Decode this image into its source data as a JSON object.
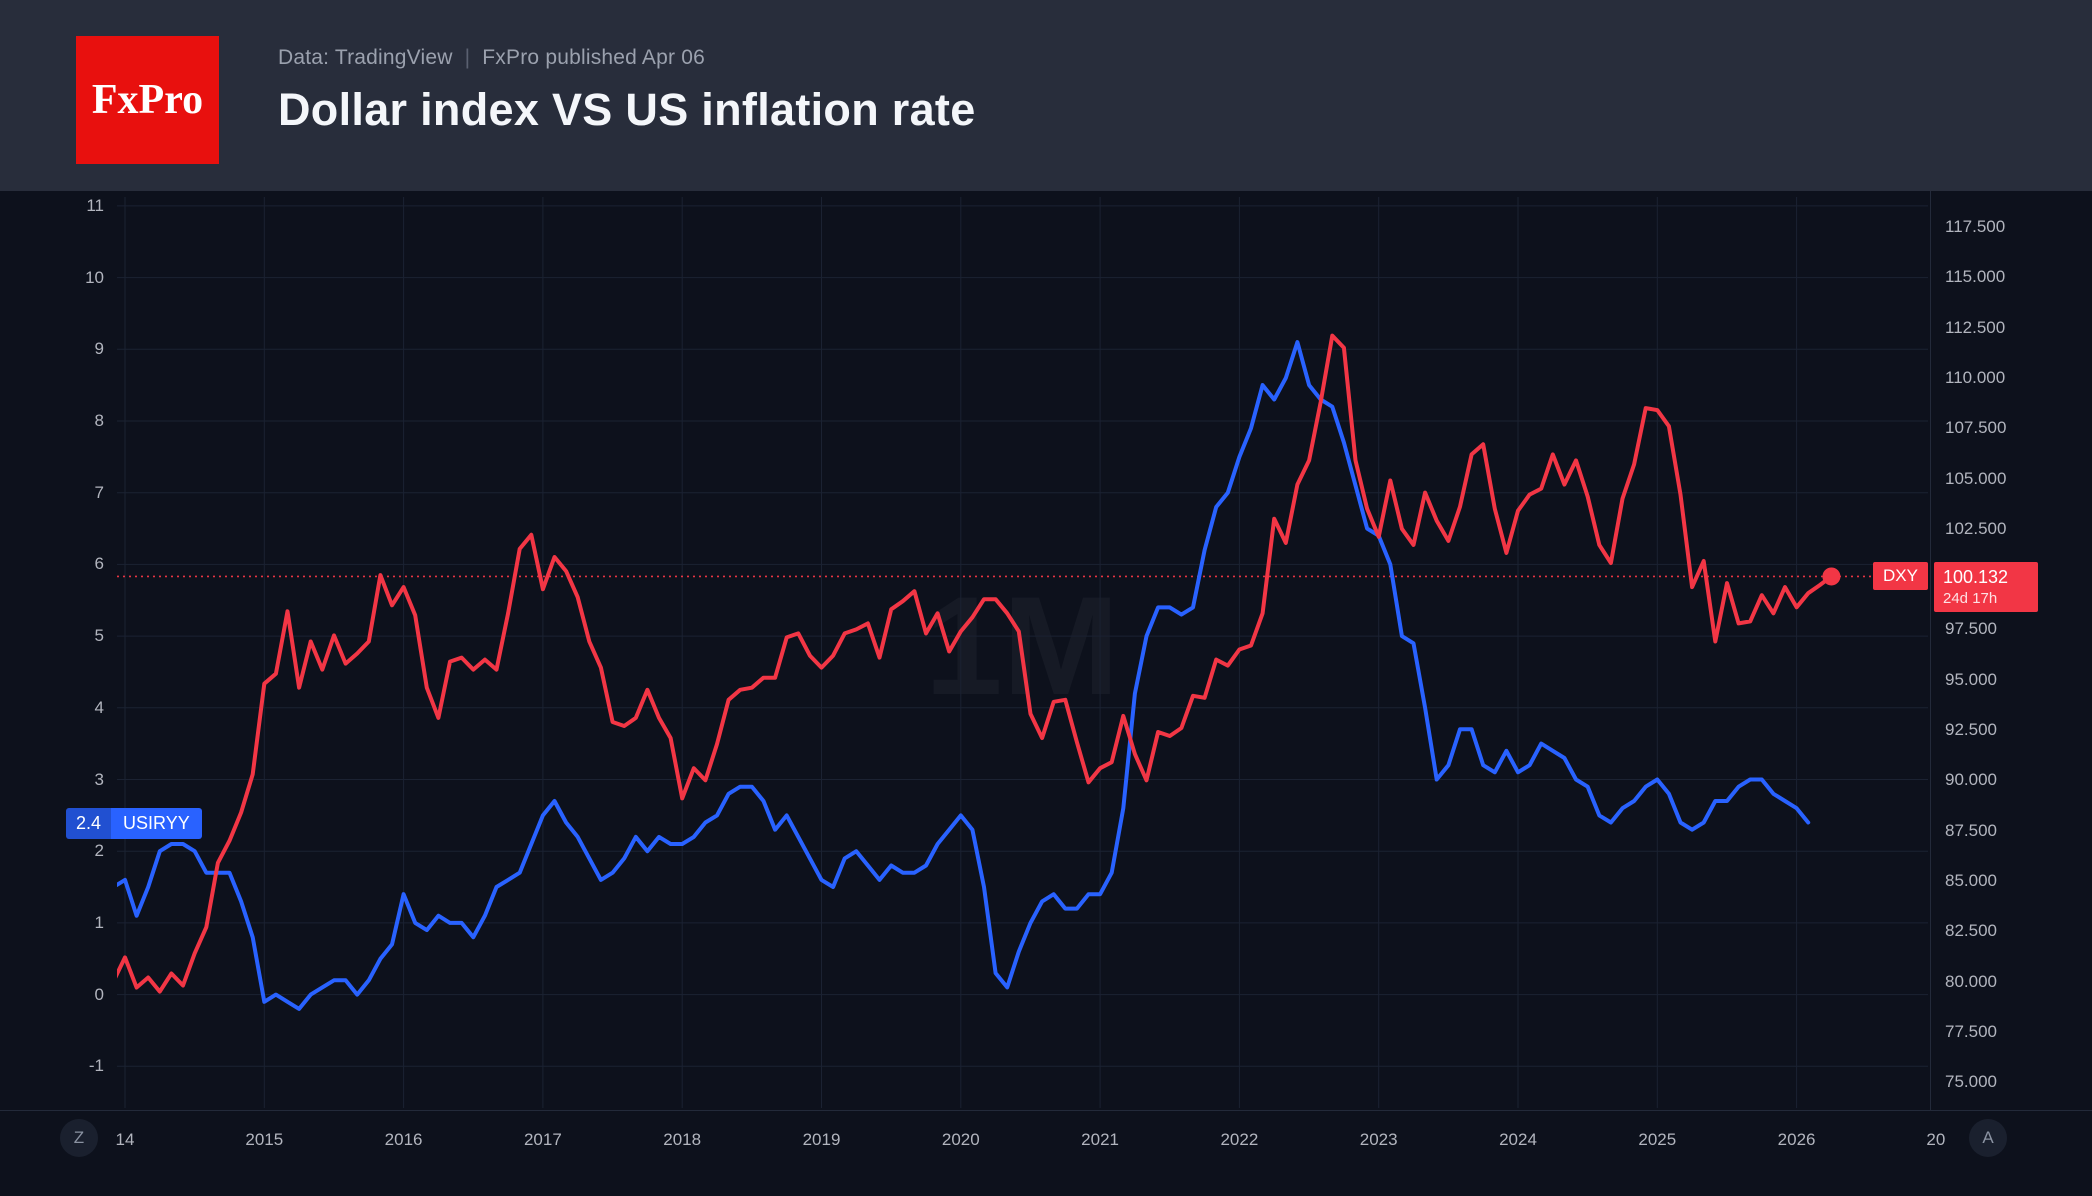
{
  "header": {
    "logo_text": "FxPro",
    "source_prefix": "Data: TradingView",
    "source_separator": "|",
    "source_suffix": "FxPro published Apr 06",
    "title": "Dollar index VS US inflation rate"
  },
  "chart": {
    "watermark": "1M",
    "badges": {
      "usiryy": {
        "value": "2.4",
        "symbol": "USIRYY",
        "color": "#2962ff"
      },
      "dxy": {
        "symbol": "DXY",
        "price": "100.132",
        "countdown": "24d 17h",
        "color": "#f23645"
      }
    },
    "bottom_left_button": "Z",
    "bottom_right_button": "A"
  },
  "colors": {
    "usiryy_blue": "#2962ff",
    "dxy_red": "#f23645",
    "logo_red": "#e8100e",
    "header_bg": "#282d3b",
    "chart_bg": "#0d111c"
  },
  "chart_data": {
    "type": "line",
    "title": "Dollar index VS US inflation rate",
    "timeframe": "1M",
    "x_unit": "monthly",
    "x_start": "2013-12",
    "x_end": "2026-04",
    "x_tick_labels": [
      "14",
      "2015",
      "2016",
      "2017",
      "2018",
      "2019",
      "2020",
      "2021",
      "2022",
      "2023",
      "2024",
      "2025",
      "2026",
      "20"
    ],
    "left_axis_ticks": [
      11,
      10,
      9,
      8,
      7,
      6,
      5,
      4,
      3,
      2,
      1,
      0,
      -1
    ],
    "right_axis_ticks": [
      "117.500",
      "115.000",
      "112.500",
      "110.000",
      "107.500",
      "105.000",
      "102.500",
      "100.000",
      "97.500",
      "95.000",
      "92.500",
      "90.000",
      "87.500",
      "85.000",
      "82.500",
      "80.000",
      "77.500",
      "75.000"
    ],
    "price_line_value": 100.132,
    "series": [
      {
        "name": "USIRYY",
        "axis": "left",
        "color": "#2962ff",
        "last_value": 2.4,
        "values": [
          1.5,
          1.6,
          1.1,
          1.5,
          2.0,
          2.1,
          2.1,
          2.0,
          1.7,
          1.7,
          1.7,
          1.3,
          0.8,
          -0.1,
          0.0,
          -0.1,
          -0.2,
          0.0,
          0.1,
          0.2,
          0.2,
          0.0,
          0.2,
          0.5,
          0.7,
          1.4,
          1.0,
          0.9,
          1.1,
          1.0,
          1.0,
          0.8,
          1.1,
          1.5,
          1.6,
          1.7,
          2.1,
          2.5,
          2.7,
          2.4,
          2.2,
          1.9,
          1.6,
          1.7,
          1.9,
          2.2,
          2.0,
          2.2,
          2.1,
          2.1,
          2.2,
          2.4,
          2.5,
          2.8,
          2.9,
          2.9,
          2.7,
          2.3,
          2.5,
          2.2,
          1.9,
          1.6,
          1.5,
          1.9,
          2.0,
          1.8,
          1.6,
          1.8,
          1.7,
          1.7,
          1.8,
          2.1,
          2.3,
          2.5,
          2.3,
          1.5,
          0.3,
          0.1,
          0.6,
          1.0,
          1.3,
          1.4,
          1.2,
          1.2,
          1.4,
          1.4,
          1.7,
          2.6,
          4.2,
          5.0,
          5.4,
          5.4,
          5.3,
          5.4,
          6.2,
          6.8,
          7.0,
          7.5,
          7.9,
          8.5,
          8.3,
          8.6,
          9.1,
          8.5,
          8.3,
          8.2,
          7.7,
          7.1,
          6.5,
          6.4,
          6.0,
          5.0,
          4.9,
          4.0,
          3.0,
          3.2,
          3.7,
          3.7,
          3.2,
          3.1,
          3.4,
          3.1,
          3.2,
          3.5,
          3.4,
          3.3,
          3.0,
          2.9,
          2.5,
          2.4,
          2.6,
          2.7,
          2.9,
          3.0,
          2.8,
          2.4,
          2.3,
          2.4,
          2.7,
          2.7,
          2.9,
          3.0,
          3.0,
          2.8,
          2.7,
          2.6,
          2.4
        ]
      },
      {
        "name": "DXY",
        "axis": "right",
        "color": "#f23645",
        "last_value": 100.132,
        "values": [
          80.0,
          81.2,
          79.7,
          80.2,
          79.5,
          80.4,
          79.8,
          81.4,
          82.7,
          85.9,
          87.0,
          88.4,
          90.3,
          94.8,
          95.3,
          98.4,
          94.6,
          96.9,
          95.5,
          97.2,
          95.8,
          96.3,
          96.9,
          100.2,
          98.7,
          99.6,
          98.2,
          94.6,
          93.1,
          95.9,
          96.1,
          95.5,
          96.0,
          95.5,
          98.3,
          101.5,
          102.2,
          99.5,
          101.1,
          100.4,
          99.1,
          96.9,
          95.6,
          92.9,
          92.7,
          93.1,
          94.5,
          93.1,
          92.1,
          89.1,
          90.6,
          90.0,
          91.8,
          94.0,
          94.5,
          94.6,
          95.1,
          95.1,
          97.1,
          97.3,
          96.2,
          95.6,
          96.2,
          97.3,
          97.5,
          97.8,
          96.1,
          98.5,
          98.9,
          99.4,
          97.3,
          98.3,
          96.4,
          97.4,
          98.1,
          99.0,
          99.0,
          98.3,
          97.4,
          93.3,
          92.1,
          93.9,
          94.0,
          91.9,
          89.9,
          90.6,
          90.9,
          93.2,
          91.3,
          90.0,
          92.4,
          92.2,
          92.6,
          94.2,
          94.1,
          96.0,
          95.7,
          96.5,
          96.7,
          98.3,
          103.0,
          101.8,
          104.7,
          105.9,
          108.8,
          112.1,
          111.5,
          105.9,
          103.5,
          102.1,
          104.9,
          102.5,
          101.7,
          104.3,
          102.9,
          101.9,
          103.6,
          106.2,
          106.7,
          103.5,
          101.3,
          103.4,
          104.2,
          104.5,
          106.2,
          104.7,
          105.9,
          104.1,
          101.7,
          100.8,
          104.0,
          105.7,
          108.5,
          108.4,
          107.6,
          104.2,
          99.6,
          100.9,
          96.9,
          99.8,
          97.8,
          97.9,
          99.2,
          98.3,
          99.6,
          98.6,
          99.3,
          99.7,
          100.132
        ]
      }
    ]
  }
}
